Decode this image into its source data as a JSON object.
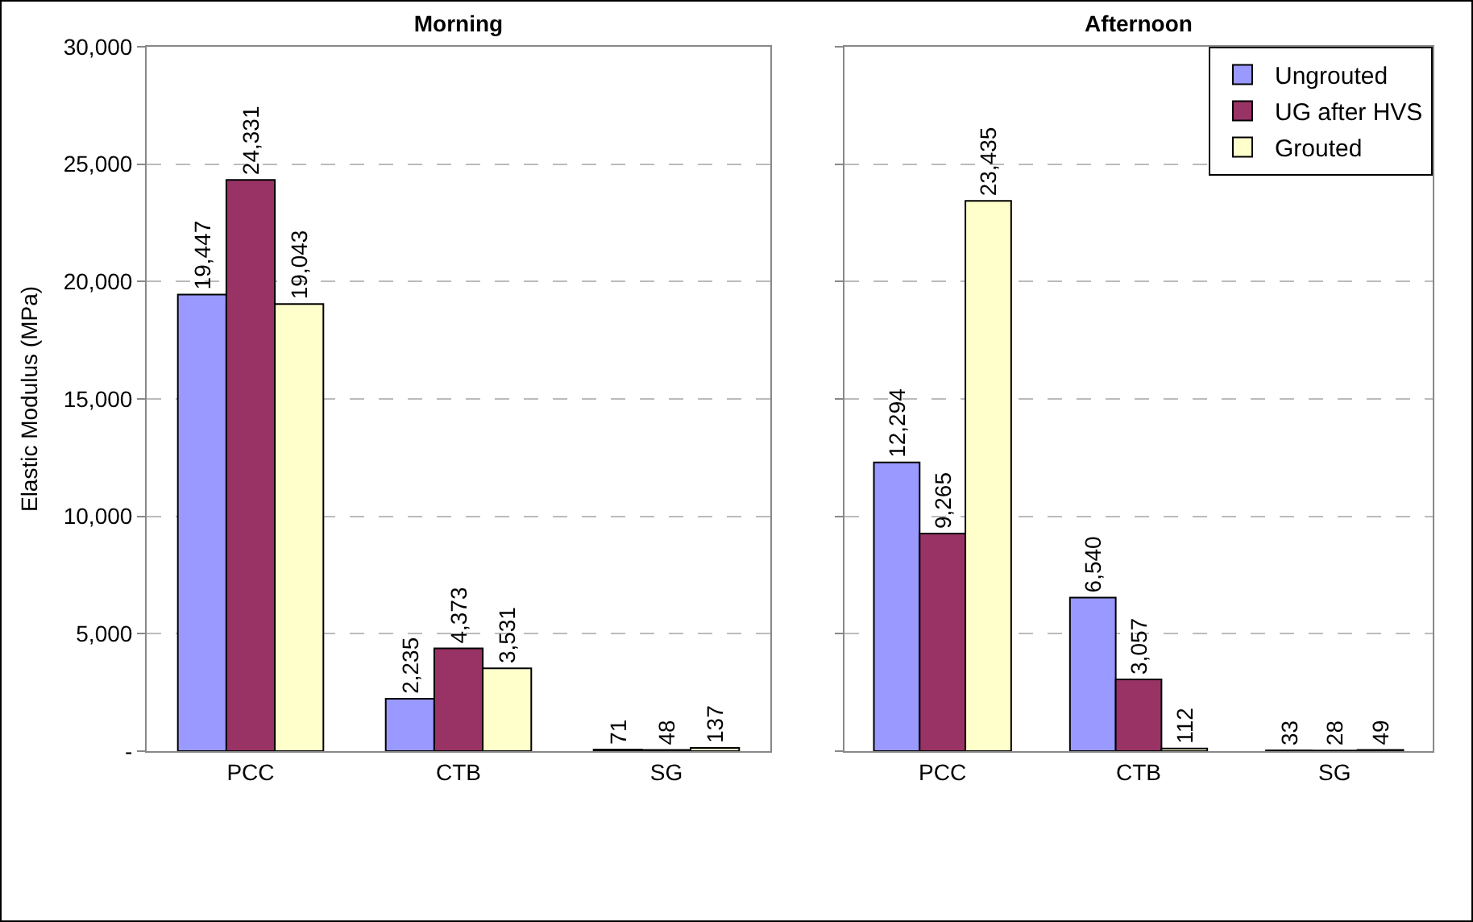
{
  "chart_data": [
    {
      "type": "bar",
      "title": "Morning",
      "ylabel": "Elastic Modulus (MPa)",
      "categories": [
        "PCC",
        "CTB",
        "SG"
      ],
      "series": [
        {
          "color": "#9999ff",
          "values": [
            19447,
            2235,
            71
          ],
          "value_labels": [
            "19,447",
            "2,235",
            "71"
          ]
        },
        {
          "color": "#993366",
          "values": [
            24331,
            4373,
            48
          ],
          "value_labels": [
            "24,331",
            "4,373",
            "48"
          ]
        },
        {
          "color": "#ffffcc",
          "values": [
            19043,
            3531,
            137
          ],
          "value_labels": [
            "19,043",
            "3,531",
            "137"
          ]
        }
      ],
      "ylim": [
        0,
        30000
      ],
      "yticks": [
        {
          "value": 0,
          "label": "-"
        },
        {
          "value": 5000,
          "label": "5,000"
        },
        {
          "value": 10000,
          "label": "10,000"
        },
        {
          "value": 15000,
          "label": "15,000"
        },
        {
          "value": 20000,
          "label": "20,000"
        },
        {
          "value": 25000,
          "label": "25,000"
        },
        {
          "value": 30000,
          "label": "30,000"
        }
      ],
      "grid": "y"
    },
    {
      "type": "bar",
      "title": "Afternoon",
      "categories": [
        "PCC",
        "CTB",
        "SG"
      ],
      "series": [
        {
          "name": "Ungrouted",
          "color": "#9999ff",
          "values": [
            12294,
            6540,
            33
          ],
          "value_labels": [
            "12,294",
            "6,540",
            "33"
          ]
        },
        {
          "name": "UG after HVS",
          "color": "#993366",
          "values": [
            9265,
            3057,
            28
          ],
          "value_labels": [
            "9,265",
            "3,057",
            "28"
          ]
        },
        {
          "name": "Grouted",
          "color": "#ffffcc",
          "values": [
            23435,
            112,
            49
          ],
          "value_labels": [
            "23,435",
            "112",
            "49"
          ]
        }
      ],
      "ylim": [
        0,
        30000
      ],
      "yticks": [
        {
          "value": 0,
          "label": null
        },
        {
          "value": 5000,
          "label": null
        },
        {
          "value": 10000,
          "label": null
        },
        {
          "value": 15000,
          "label": null
        },
        {
          "value": 20000,
          "label": null
        },
        {
          "value": 25000,
          "label": null
        },
        {
          "value": 30000,
          "label": null
        }
      ],
      "grid": "y",
      "legend": "top right",
      "tick_labels": "x"
    }
  ]
}
